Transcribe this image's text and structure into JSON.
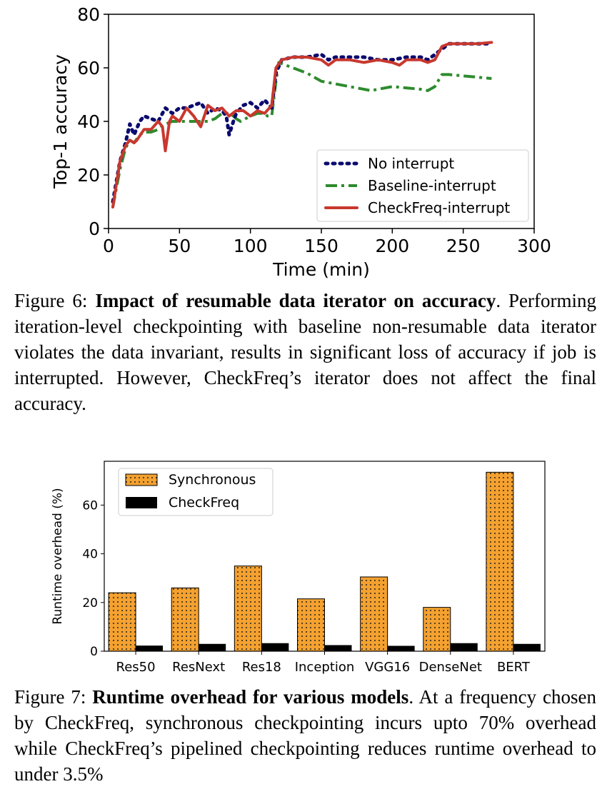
{
  "figure6": {
    "caption_label": "Figure 6: ",
    "caption_title": "Impact of resumable data iterator on accuracy",
    "caption_text": ". Performing iteration-level checkpointing with baseline non-resumable data iterator violates the data invariant, results in significant loss of accuracy if job is interrupted. However, CheckFreq’s iterator does not affect the final accuracy."
  },
  "figure7": {
    "caption_label": "Figure 7: ",
    "caption_title": "Runtime overhead for various models",
    "caption_text": ". At a frequency chosen by CheckFreq, synchronous checkpointing incurs upto 70% overhead while CheckFreq’s pipelined checkpointing reduces runtime overhead to under 3.5%"
  },
  "colors": {
    "no_interrupt": "#0a0a6e",
    "baseline": "#2e8b2e",
    "checkfreq_line": "#c8382e",
    "synchronous_bar": "#f4a12f",
    "checkfreq_bar": "#000000"
  },
  "chart_data": [
    {
      "type": "line",
      "xlabel": "Time (min)",
      "ylabel": "Top-1 accuracy",
      "xlim": [
        0,
        300
      ],
      "ylim": [
        0,
        80
      ],
      "xticks": [
        "0",
        "50",
        "100",
        "150",
        "200",
        "250",
        "300"
      ],
      "yticks": [
        "0",
        "20",
        "40",
        "60",
        "80"
      ],
      "grid": false,
      "legend_position": "bottom-right",
      "series": [
        {
          "name": "No interrupt",
          "style": "dotted",
          "x": [
            3,
            8,
            12,
            15,
            18,
            22,
            25,
            30,
            35,
            40,
            45,
            50,
            55,
            60,
            65,
            70,
            75,
            80,
            83,
            85,
            88,
            90,
            95,
            100,
            105,
            110,
            115,
            118,
            122,
            130,
            140,
            150,
            155,
            160,
            170,
            180,
            190,
            200,
            210,
            220,
            225,
            230,
            235,
            240,
            250,
            260,
            270
          ],
          "y": [
            10,
            25,
            32,
            39,
            35,
            40,
            42,
            41,
            40,
            45,
            43,
            45,
            45,
            46,
            47,
            43,
            45,
            44,
            42,
            35,
            40,
            43,
            46,
            47,
            45,
            48,
            45,
            58,
            63,
            64,
            64,
            65,
            63,
            64,
            64,
            64,
            63,
            63,
            64,
            64,
            63,
            65,
            67,
            69,
            69,
            69,
            69
          ]
        },
        {
          "name": "Baseline-interrupt",
          "style": "dashdot",
          "x": [
            3,
            8,
            12,
            15,
            18,
            22,
            25,
            30,
            35,
            40,
            45,
            50,
            55,
            60,
            65,
            70,
            75,
            80,
            85,
            88,
            90,
            93,
            100,
            105,
            110,
            112,
            115,
            118,
            120,
            125,
            130,
            140,
            150,
            160,
            170,
            180,
            185,
            190,
            200,
            210,
            220,
            225,
            230,
            235,
            240,
            250,
            260,
            270
          ],
          "y": [
            8,
            22,
            30,
            33,
            32,
            35,
            36,
            36,
            37,
            39,
            40,
            40,
            40,
            40,
            40,
            40,
            41,
            43,
            43,
            42,
            41,
            40,
            42,
            43,
            43,
            42,
            42,
            55,
            62,
            61,
            60,
            58,
            55,
            54,
            53,
            52,
            51.5,
            52,
            53,
            52.5,
            52,
            51.5,
            53,
            57.5,
            57.5,
            57,
            56.5,
            56
          ]
        },
        {
          "name": "CheckFreq-interrupt",
          "style": "solid",
          "x": [
            3,
            8,
            12,
            15,
            18,
            20,
            25,
            30,
            35,
            38,
            40,
            43,
            45,
            50,
            55,
            60,
            65,
            70,
            75,
            80,
            85,
            90,
            95,
            100,
            105,
            110,
            115,
            118,
            122,
            130,
            140,
            150,
            155,
            160,
            170,
            180,
            190,
            200,
            205,
            210,
            220,
            225,
            230,
            235,
            240,
            250,
            260,
            270
          ],
          "y": [
            8,
            25,
            31,
            33,
            32,
            33,
            37,
            37,
            40,
            38,
            29,
            40,
            42,
            40,
            45,
            42,
            38,
            46,
            44,
            45,
            42,
            44,
            44,
            42,
            44,
            43,
            46,
            60,
            63,
            64,
            64,
            63,
            61,
            63,
            63,
            62,
            63,
            62,
            61,
            63,
            63,
            62,
            63,
            68,
            69,
            69,
            69,
            69.5
          ]
        }
      ]
    },
    {
      "type": "bar",
      "ylabel": "Runtime overhead (%)",
      "xlabel": "",
      "ylim": [
        0,
        78
      ],
      "yticks": [
        "0",
        "20",
        "40",
        "60"
      ],
      "grid": false,
      "legend_position": "top-left",
      "categories": [
        "Res50",
        "ResNext",
        "Res18",
        "Inception",
        "VGG16",
        "DenseNet",
        "BERT"
      ],
      "series": [
        {
          "name": "Synchronous",
          "values": [
            24,
            26,
            35,
            21.5,
            30.5,
            18,
            73.5
          ]
        },
        {
          "name": "CheckFreq",
          "values": [
            2.3,
            3.0,
            3.3,
            2.5,
            2.2,
            3.3,
            3.0
          ]
        }
      ]
    }
  ]
}
